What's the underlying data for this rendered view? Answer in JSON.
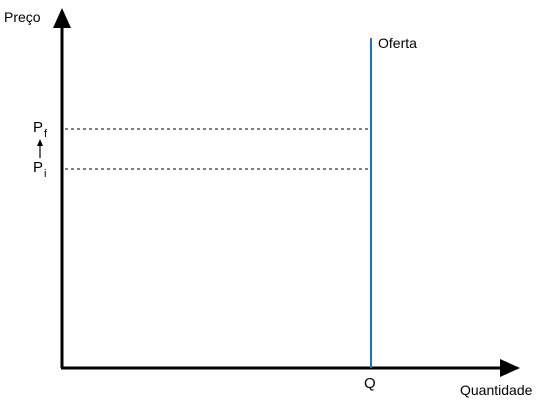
{
  "axes": {
    "y_label": "Preço",
    "x_label": "Quantidade"
  },
  "supply": {
    "label": "Oferta",
    "color": "#1f6fc5"
  },
  "quantity_label": "Q",
  "prices": {
    "final": {
      "letter": "P",
      "subscript": "f"
    },
    "initial": {
      "letter": "P",
      "subscript": "i"
    }
  }
}
